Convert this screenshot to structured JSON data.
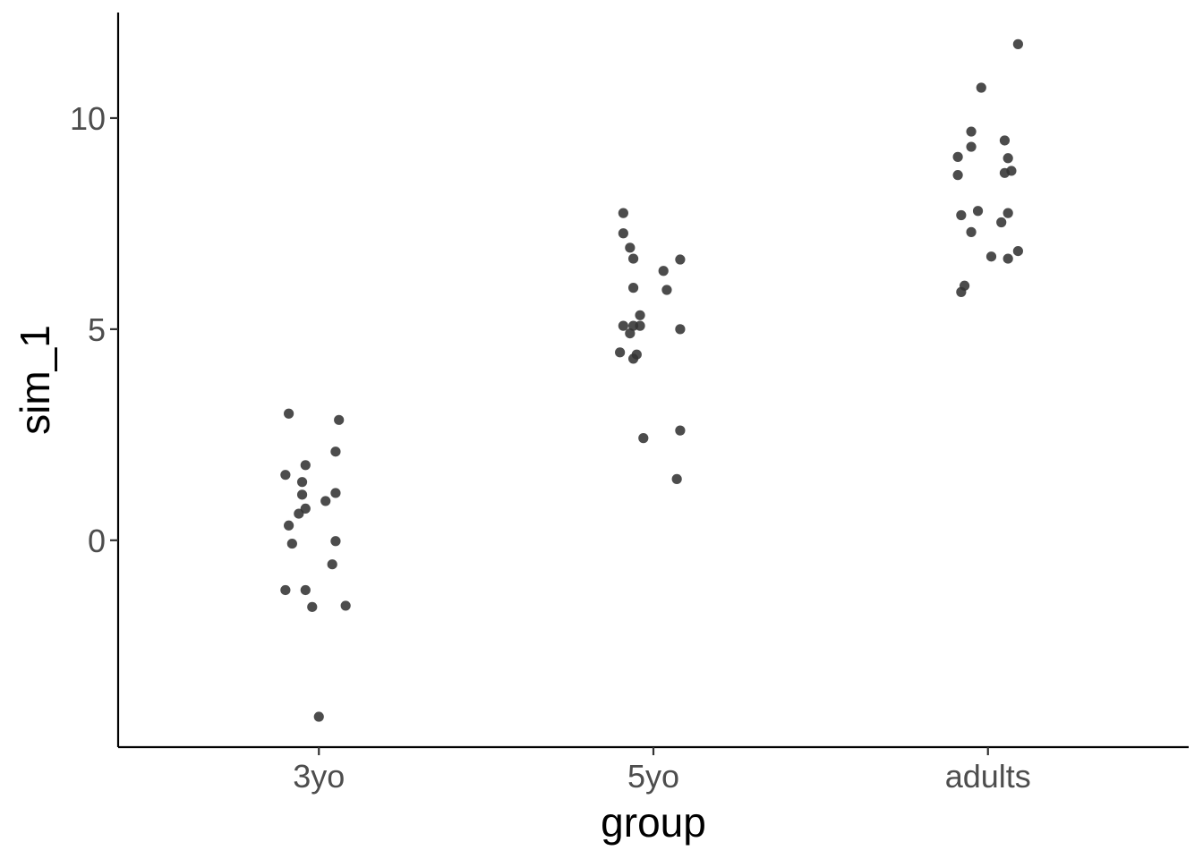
{
  "chart_data": {
    "type": "scatter",
    "xlabel": "group",
    "ylabel": "sim_1",
    "categories": [
      "3yo",
      "5yo",
      "adults"
    ],
    "ylim": [
      -4.9,
      12.5
    ],
    "y_ticks": [
      0,
      5,
      10
    ],
    "y_tick_labels": [
      "0",
      "5",
      "10"
    ],
    "grid": false,
    "point_color": "#333333",
    "points": [
      {
        "group": "3yo",
        "jitter": -0.09,
        "y": 3.0
      },
      {
        "group": "3yo",
        "jitter": 0.06,
        "y": 2.85
      },
      {
        "group": "3yo",
        "jitter": 0.05,
        "y": 2.1
      },
      {
        "group": "3yo",
        "jitter": -0.04,
        "y": 1.78
      },
      {
        "group": "3yo",
        "jitter": -0.1,
        "y": 1.55
      },
      {
        "group": "3yo",
        "jitter": -0.05,
        "y": 1.38
      },
      {
        "group": "3yo",
        "jitter": 0.05,
        "y": 1.12
      },
      {
        "group": "3yo",
        "jitter": -0.05,
        "y": 1.08
      },
      {
        "group": "3yo",
        "jitter": 0.02,
        "y": 0.93
      },
      {
        "group": "3yo",
        "jitter": -0.04,
        "y": 0.75
      },
      {
        "group": "3yo",
        "jitter": -0.06,
        "y": 0.63
      },
      {
        "group": "3yo",
        "jitter": -0.09,
        "y": 0.35
      },
      {
        "group": "3yo",
        "jitter": 0.05,
        "y": -0.02
      },
      {
        "group": "3yo",
        "jitter": -0.08,
        "y": -0.08
      },
      {
        "group": "3yo",
        "jitter": 0.04,
        "y": -0.57
      },
      {
        "group": "3yo",
        "jitter": -0.1,
        "y": -1.18
      },
      {
        "group": "3yo",
        "jitter": -0.04,
        "y": -1.18
      },
      {
        "group": "3yo",
        "jitter": -0.02,
        "y": -1.58
      },
      {
        "group": "3yo",
        "jitter": 0.08,
        "y": -1.55
      },
      {
        "group": "3yo",
        "jitter": 0.0,
        "y": -4.18
      },
      {
        "group": "5yo",
        "jitter": -0.09,
        "y": 7.75
      },
      {
        "group": "5yo",
        "jitter": -0.09,
        "y": 7.27
      },
      {
        "group": "5yo",
        "jitter": -0.07,
        "y": 6.93
      },
      {
        "group": "5yo",
        "jitter": -0.06,
        "y": 6.67
      },
      {
        "group": "5yo",
        "jitter": 0.08,
        "y": 6.65
      },
      {
        "group": "5yo",
        "jitter": 0.03,
        "y": 6.38
      },
      {
        "group": "5yo",
        "jitter": -0.06,
        "y": 5.98
      },
      {
        "group": "5yo",
        "jitter": 0.04,
        "y": 5.93
      },
      {
        "group": "5yo",
        "jitter": -0.04,
        "y": 5.33
      },
      {
        "group": "5yo",
        "jitter": -0.09,
        "y": 5.08
      },
      {
        "group": "5yo",
        "jitter": -0.06,
        "y": 5.08
      },
      {
        "group": "5yo",
        "jitter": -0.04,
        "y": 5.08
      },
      {
        "group": "5yo",
        "jitter": 0.08,
        "y": 5.0
      },
      {
        "group": "5yo",
        "jitter": -0.07,
        "y": 4.9
      },
      {
        "group": "5yo",
        "jitter": -0.1,
        "y": 4.45
      },
      {
        "group": "5yo",
        "jitter": -0.05,
        "y": 4.4
      },
      {
        "group": "5yo",
        "jitter": -0.06,
        "y": 4.3
      },
      {
        "group": "5yo",
        "jitter": 0.08,
        "y": 2.6
      },
      {
        "group": "5yo",
        "jitter": -0.03,
        "y": 2.42
      },
      {
        "group": "5yo",
        "jitter": 0.07,
        "y": 1.45
      },
      {
        "group": "adults",
        "jitter": 0.09,
        "y": 11.75
      },
      {
        "group": "adults",
        "jitter": -0.02,
        "y": 10.72
      },
      {
        "group": "adults",
        "jitter": -0.05,
        "y": 9.68
      },
      {
        "group": "adults",
        "jitter": 0.05,
        "y": 9.47
      },
      {
        "group": "adults",
        "jitter": -0.05,
        "y": 9.32
      },
      {
        "group": "adults",
        "jitter": -0.09,
        "y": 9.08
      },
      {
        "group": "adults",
        "jitter": 0.06,
        "y": 9.05
      },
      {
        "group": "adults",
        "jitter": 0.07,
        "y": 8.75
      },
      {
        "group": "adults",
        "jitter": 0.05,
        "y": 8.7
      },
      {
        "group": "adults",
        "jitter": -0.09,
        "y": 8.65
      },
      {
        "group": "adults",
        "jitter": -0.03,
        "y": 7.8
      },
      {
        "group": "adults",
        "jitter": 0.06,
        "y": 7.75
      },
      {
        "group": "adults",
        "jitter": -0.08,
        "y": 7.7
      },
      {
        "group": "adults",
        "jitter": 0.04,
        "y": 7.53
      },
      {
        "group": "adults",
        "jitter": -0.05,
        "y": 7.3
      },
      {
        "group": "adults",
        "jitter": 0.09,
        "y": 6.85
      },
      {
        "group": "adults",
        "jitter": 0.01,
        "y": 6.72
      },
      {
        "group": "adults",
        "jitter": 0.06,
        "y": 6.67
      },
      {
        "group": "adults",
        "jitter": -0.07,
        "y": 6.03
      },
      {
        "group": "adults",
        "jitter": -0.08,
        "y": 5.88
      }
    ]
  }
}
